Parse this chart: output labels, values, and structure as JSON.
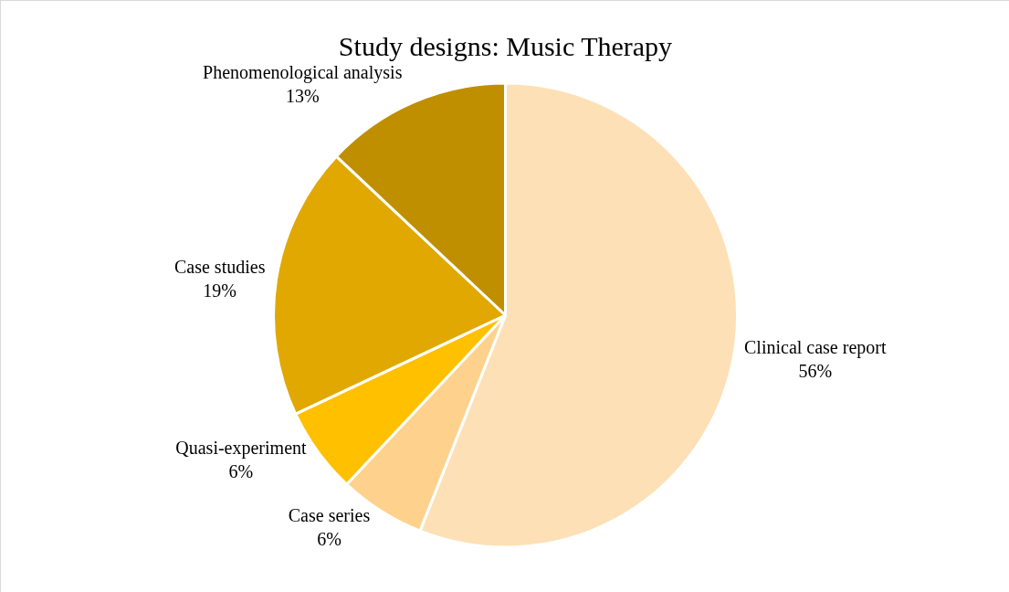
{
  "chart_data": {
    "type": "pie",
    "title": "Study designs: Music Therapy",
    "categories": [
      "Clinical case report",
      "Case series",
      "Quasi-experiment",
      "Case studies",
      "Phenomenological analysis"
    ],
    "values": [
      56,
      6,
      6,
      19,
      13
    ],
    "value_labels": [
      "56%",
      "6%",
      "6%",
      "19%",
      "13%"
    ],
    "colors": [
      "#fde0b6",
      "#fed28c",
      "#ffc000",
      "#e0a800",
      "#bf8f00"
    ],
    "legend": false
  }
}
